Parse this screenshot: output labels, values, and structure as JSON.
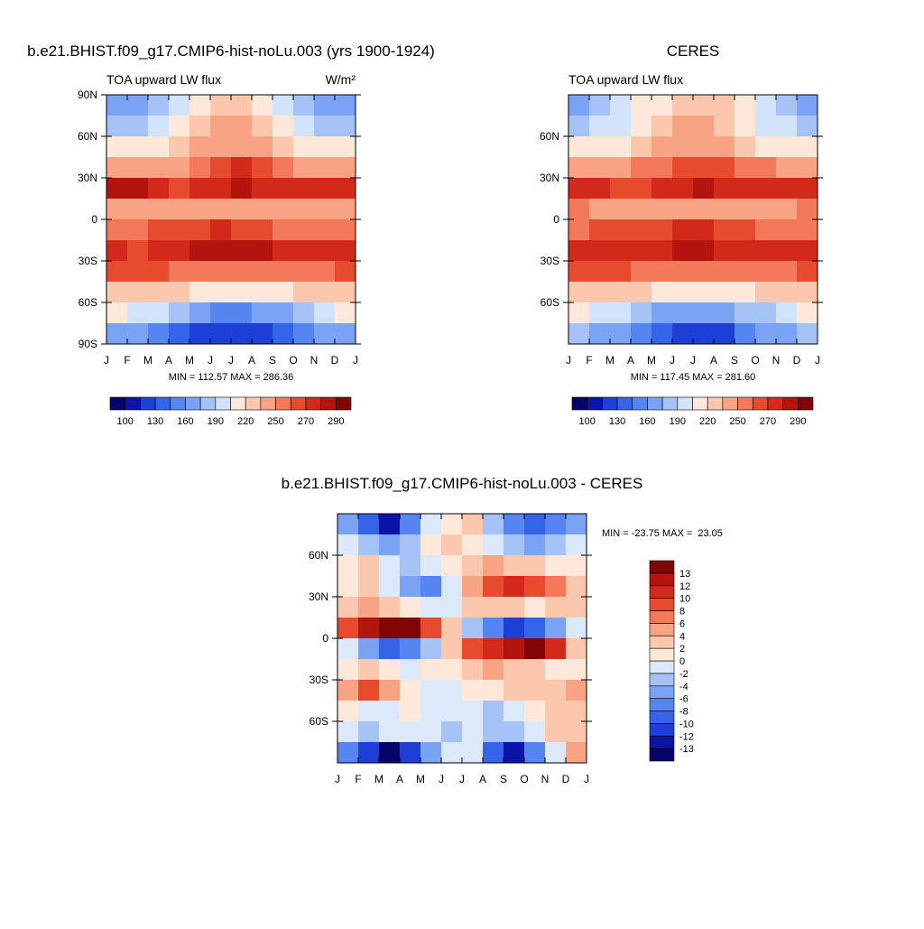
{
  "chart_data": [
    {
      "type": "heatmap",
      "title": "b.e21.BHIST.f09_g17.CMIP6-hist-noLu.003 (yrs 1900-1924)",
      "subtitle": "TOA upward LW flux",
      "units": "W/m²",
      "stats": "MIN = 112.57 MAX = 286.36",
      "categories": [
        "J",
        "F",
        "M",
        "A",
        "M",
        "J",
        "J",
        "A",
        "S",
        "O",
        "N",
        "D",
        "J"
      ],
      "ylim": [
        -90,
        90
      ],
      "yticks": [
        {
          "value": 90,
          "label": "90N"
        },
        {
          "value": 60,
          "label": "60N"
        },
        {
          "value": 30,
          "label": "30N"
        },
        0,
        {
          "value": -30,
          "label": "30S"
        },
        {
          "value": -60,
          "label": "60S"
        },
        {
          "value": -90,
          "label": "90S"
        }
      ],
      "y": [
        82.5,
        67.5,
        52.5,
        37.5,
        22.5,
        7.5,
        -7.5,
        -22.5,
        -37.5,
        -52.5,
        -67.5,
        -82.5
      ],
      "field": [
        [
          165,
          170,
          180,
          200,
          215,
          225,
          225,
          215,
          195,
          180,
          170,
          165
        ],
        [
          185,
          188,
          195,
          210,
          225,
          235,
          235,
          225,
          210,
          195,
          188,
          185
        ],
        [
          205,
          208,
          212,
          222,
          235,
          245,
          245,
          238,
          225,
          215,
          208,
          205
        ],
        [
          235,
          238,
          242,
          248,
          258,
          268,
          272,
          268,
          258,
          248,
          240,
          235
        ],
        [
          285,
          282,
          272,
          265,
          270,
          278,
          280,
          278,
          272,
          270,
          272,
          276
        ],
        [
          248,
          245,
          240,
          238,
          235,
          235,
          238,
          240,
          240,
          242,
          245,
          248
        ],
        [
          255,
          258,
          262,
          262,
          265,
          270,
          268,
          262,
          255,
          252,
          255,
          255
        ],
        [
          272,
          268,
          272,
          275,
          280,
          286,
          286,
          282,
          278,
          275,
          272,
          272
        ],
        [
          262,
          262,
          260,
          258,
          255,
          252,
          250,
          250,
          252,
          255,
          258,
          262
        ],
        [
          232,
          230,
          228,
          222,
          215,
          210,
          208,
          210,
          215,
          222,
          228,
          232
        ],
        [
          205,
          200,
          192,
          178,
          165,
          158,
          158,
          162,
          172,
          185,
          195,
          205
        ],
        [
          172,
          165,
          150,
          135,
          125,
          118,
          115,
          120,
          135,
          150,
          165,
          172
        ]
      ],
      "colorbar": {
        "orientation": "horizontal",
        "levels": [
          100,
          115,
          130,
          145,
          160,
          175,
          190,
          205,
          220,
          235,
          250,
          260,
          270,
          280,
          290
        ],
        "ticks": [
          100,
          130,
          160,
          190,
          220,
          250,
          270,
          290
        ],
        "colors": [
          "#08036b",
          "#0a14a8",
          "#1d3fd6",
          "#3465e8",
          "#5585f0",
          "#7aa2f5",
          "#a6c3f7",
          "#d2e4fb",
          "#fde8da",
          "#fbc8ae",
          "#f7a384",
          "#f3795a",
          "#e84a2e",
          "#d3291a",
          "#b3140e",
          "#800505"
        ]
      }
    },
    {
      "type": "heatmap",
      "title": "CERES",
      "subtitle": "TOA upward LW flux",
      "stats": "MIN = 117.45 MAX = 281.60",
      "categories": [
        "J",
        "F",
        "M",
        "A",
        "M",
        "J",
        "J",
        "A",
        "S",
        "O",
        "N",
        "D",
        "J"
      ],
      "ylim": [
        -90,
        90
      ],
      "yticks": [
        {
          "value": 60,
          "label": "60N"
        },
        {
          "value": 30,
          "label": "30N"
        },
        0,
        {
          "value": -30,
          "label": "30S"
        },
        {
          "value": -60,
          "label": "60S"
        }
      ],
      "y": [
        82.5,
        67.5,
        52.5,
        37.5,
        22.5,
        7.5,
        -7.5,
        -22.5,
        -37.5,
        -52.5,
        -67.5,
        -82.5
      ],
      "field": [
        [
          170,
          178,
          195,
          208,
          218,
          225,
          225,
          220,
          205,
          190,
          178,
          172
        ],
        [
          188,
          192,
          200,
          212,
          225,
          235,
          235,
          228,
          215,
          200,
          192,
          188
        ],
        [
          208,
          210,
          215,
          225,
          238,
          245,
          245,
          240,
          228,
          218,
          210,
          208
        ],
        [
          240,
          242,
          245,
          250,
          258,
          266,
          268,
          265,
          258,
          250,
          244,
          240
        ],
        [
          275,
          272,
          268,
          266,
          272,
          278,
          280,
          278,
          272,
          270,
          272,
          276
        ],
        [
          250,
          248,
          245,
          242,
          238,
          236,
          238,
          240,
          242,
          244,
          246,
          250
        ],
        [
          258,
          260,
          262,
          264,
          268,
          272,
          272,
          268,
          262,
          258,
          258,
          258
        ],
        [
          272,
          270,
          272,
          275,
          278,
          280,
          280,
          278,
          276,
          274,
          272,
          272
        ],
        [
          262,
          262,
          260,
          258,
          255,
          252,
          250,
          250,
          252,
          255,
          258,
          262
        ],
        [
          232,
          230,
          228,
          224,
          218,
          212,
          210,
          212,
          218,
          224,
          228,
          232
        ],
        [
          205,
          202,
          195,
          182,
          170,
          162,
          160,
          165,
          175,
          188,
          198,
          205
        ],
        [
          180,
          172,
          160,
          145,
          135,
          125,
          122,
          128,
          145,
          160,
          172,
          180
        ]
      ],
      "colorbar": {
        "orientation": "horizontal",
        "levels": [
          100,
          115,
          130,
          145,
          160,
          175,
          190,
          205,
          220,
          235,
          250,
          260,
          270,
          280,
          290
        ],
        "ticks": [
          100,
          130,
          160,
          190,
          220,
          250,
          270,
          290
        ],
        "colors": [
          "#08036b",
          "#0a14a8",
          "#1d3fd6",
          "#3465e8",
          "#5585f0",
          "#7aa2f5",
          "#a6c3f7",
          "#d2e4fb",
          "#fde8da",
          "#fbc8ae",
          "#f7a384",
          "#f3795a",
          "#e84a2e",
          "#d3291a",
          "#b3140e",
          "#800505"
        ]
      }
    },
    {
      "type": "heatmap",
      "title": "b.e21.BHIST.f09_g17.CMIP6-hist-noLu.003 - CERES",
      "stats": "MIN = -23.75 MAX =  23.05",
      "categories": [
        "J",
        "F",
        "M",
        "A",
        "M",
        "J",
        "J",
        "A",
        "S",
        "O",
        "N",
        "D",
        "J"
      ],
      "ylim": [
        -90,
        90
      ],
      "yticks": [
        {
          "value": 60,
          "label": "60N"
        },
        {
          "value": 30,
          "label": "30N"
        },
        0,
        {
          "value": -30,
          "label": "30S"
        },
        {
          "value": -60,
          "label": "60S"
        }
      ],
      "y": [
        82.5,
        67.5,
        52.5,
        37.5,
        22.5,
        7.5,
        -7.5,
        -22.5,
        -37.5,
        -52.5,
        -67.5,
        -82.5
      ],
      "field": [
        [
          -6,
          -10,
          -13,
          -8,
          -2,
          0,
          2,
          -4,
          -8,
          -10,
          -8,
          -6
        ],
        [
          -2,
          -4,
          -6,
          -4,
          0,
          2,
          0,
          -2,
          -4,
          -6,
          -4,
          -2
        ],
        [
          0,
          2,
          -2,
          -4,
          -2,
          0,
          2,
          4,
          2,
          2,
          0,
          0
        ],
        [
          0,
          2,
          -2,
          -6,
          -8,
          -2,
          4,
          8,
          10,
          8,
          6,
          2
        ],
        [
          2,
          4,
          2,
          0,
          -2,
          -2,
          2,
          2,
          2,
          0,
          2,
          2
        ],
        [
          8,
          12,
          14,
          13,
          8,
          2,
          -4,
          -8,
          -12,
          -10,
          -6,
          -2
        ],
        [
          -2,
          -6,
          -10,
          -8,
          -4,
          2,
          8,
          10,
          12,
          13,
          10,
          2
        ],
        [
          0,
          2,
          0,
          -2,
          0,
          0,
          2,
          4,
          2,
          2,
          0,
          0
        ],
        [
          4,
          8,
          4,
          0,
          -2,
          -2,
          0,
          0,
          2,
          2,
          2,
          4
        ],
        [
          0,
          -2,
          -2,
          0,
          -2,
          -2,
          -2,
          -4,
          -2,
          0,
          2,
          2
        ],
        [
          -2,
          -4,
          -2,
          -2,
          -2,
          -4,
          -2,
          -4,
          -4,
          -2,
          2,
          2
        ],
        [
          -8,
          -12,
          -14,
          -12,
          -6,
          -2,
          -2,
          -10,
          -13,
          -8,
          -2,
          4
        ]
      ],
      "colorbar": {
        "orientation": "vertical",
        "levels": [
          -13,
          -12,
          -10,
          -8,
          -6,
          -4,
          -2,
          0,
          2,
          4,
          6,
          8,
          10,
          12,
          13
        ],
        "ticks": [
          -13,
          -12,
          -10,
          -8,
          -6,
          -4,
          -2,
          0,
          2,
          4,
          6,
          8,
          10,
          12,
          13
        ],
        "colors": [
          "#08036b",
          "#0a14a8",
          "#1d3fd6",
          "#3465e8",
          "#5585f0",
          "#7aa2f5",
          "#a6c3f7",
          "#dce9fb",
          "#fde8da",
          "#fbc8ae",
          "#f7a384",
          "#f3795a",
          "#e84a2e",
          "#d3291a",
          "#b3140e",
          "#800505"
        ]
      }
    }
  ]
}
